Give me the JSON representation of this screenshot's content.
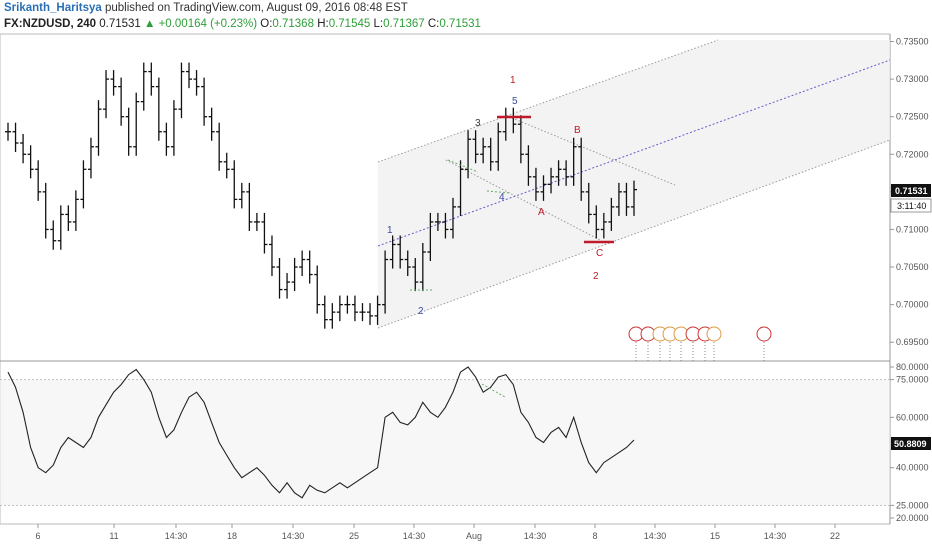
{
  "header": {
    "author": "Srikanth_Haritsya",
    "published": "published on TradingView.com, August 09, 2016 08:48 EST",
    "symbol": "FX:NZDUSD, 240",
    "last": "0.71531",
    "change": "▲ +0.00164 (+0.23%)",
    "o_label": "O:",
    "o": "0.71368",
    "h_label": "H:",
    "h": "0.71545",
    "l_label": "L:",
    "l": "0.71367",
    "c_label": "C:",
    "c": "0.71531"
  },
  "colors": {
    "bars": "#111111",
    "wave_red": "#c0192a",
    "wave_blue": "#3a4aa0",
    "channel": "#999999",
    "median": "#6a5acd"
  },
  "chart_data": [
    {
      "type": "line",
      "name": "price",
      "x_tick_labels": [
        "6",
        "11",
        "14:30",
        "18",
        "14:30",
        "25",
        "14:30",
        "Aug",
        "14:30",
        "8",
        "14:30",
        "15",
        "14:30",
        "22"
      ],
      "y_tick_labels": [
        "0.73500",
        "0.73000",
        "0.72500",
        "0.72000",
        "0.71500",
        "0.71000",
        "0.70500",
        "0.70000",
        "0.69500"
      ],
      "ylim": [
        0.6925,
        0.736
      ],
      "price_label": "0.71531",
      "countdown_label": "3:11:40",
      "close_values": [
        0.723,
        0.7215,
        0.72,
        0.718,
        0.715,
        0.71,
        0.7085,
        0.712,
        0.711,
        0.714,
        0.718,
        0.721,
        0.726,
        0.73,
        0.729,
        0.725,
        0.721,
        0.727,
        0.731,
        0.729,
        0.723,
        0.721,
        0.726,
        0.731,
        0.73,
        0.729,
        0.725,
        0.723,
        0.719,
        0.718,
        0.714,
        0.715,
        0.711,
        0.711,
        0.708,
        0.705,
        0.702,
        0.703,
        0.705,
        0.706,
        0.704,
        0.7,
        0.698,
        0.699,
        0.7,
        0.7,
        0.699,
        0.699,
        0.6985,
        0.7,
        0.706,
        0.708,
        0.706,
        0.705,
        0.703,
        0.707,
        0.711,
        0.711,
        0.71,
        0.713,
        0.718,
        0.722,
        0.72,
        0.721,
        0.719,
        0.723,
        0.725,
        0.724,
        0.72,
        0.717,
        0.715,
        0.716,
        0.717,
        0.718,
        0.717,
        0.721,
        0.715,
        0.712,
        0.71,
        0.711,
        0.713,
        0.715,
        0.713,
        0.7153
      ],
      "annotations": {
        "wave_1": "1",
        "wave_2": "2",
        "sub_1": "1",
        "sub_2": "2",
        "sub_3": "3",
        "sub_4": "4",
        "sub_5": "5",
        "sub_a": "A",
        "sub_b": "B",
        "sub_c": "C"
      }
    },
    {
      "type": "line",
      "name": "oscillator",
      "y_tick_labels": [
        "80.0000",
        "75.0000",
        "60.0000",
        "50.8809",
        "40.0000",
        "25.0000",
        "20.0000"
      ],
      "ylim": [
        18,
        82
      ],
      "levels": [
        75,
        25
      ],
      "last_label": "50.8809",
      "values": [
        78,
        72,
        62,
        48,
        40,
        38,
        41,
        48,
        52,
        50,
        48,
        52,
        60,
        65,
        70,
        73,
        77,
        79,
        75,
        70,
        60,
        52,
        55,
        62,
        68,
        70,
        66,
        58,
        50,
        45,
        40,
        36,
        38,
        40,
        37,
        33,
        30,
        34,
        30,
        28,
        33,
        31,
        30,
        32,
        34,
        32,
        34,
        36,
        38,
        40,
        60,
        62,
        58,
        57,
        60,
        66,
        62,
        60,
        64,
        70,
        78,
        80,
        76,
        70,
        72,
        76,
        77,
        73,
        62,
        58,
        52,
        50,
        54,
        56,
        52,
        60,
        50,
        42,
        38,
        42,
        44,
        46,
        48,
        51
      ]
    }
  ]
}
